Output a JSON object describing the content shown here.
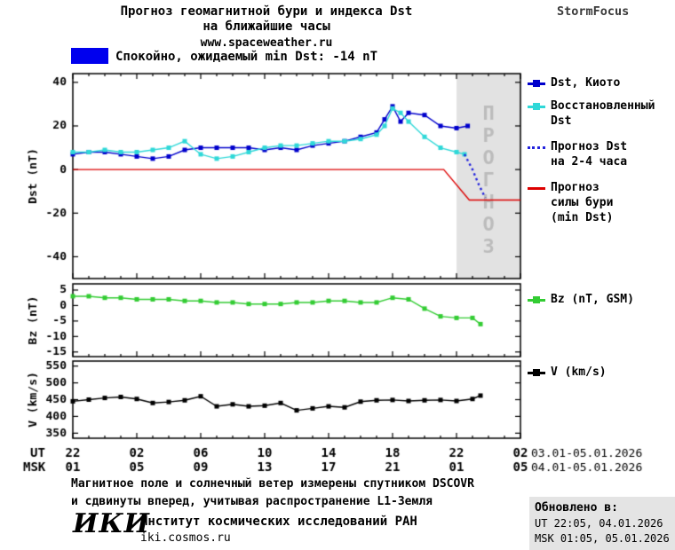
{
  "header": {
    "title_line1": "Прогноз геомагнитной бури и индекса Dst",
    "title_line2": "на ближайшие часы",
    "site": "www.spaceweather.ru",
    "brand": "StormFocus"
  },
  "status_banner": {
    "box_color": "#0000ee",
    "text": "Спокойно, ожидаемый min Dst: -14 nT"
  },
  "legend": {
    "dst_kyoto": "Dst, Киото",
    "dst_restored": "Восстановленный\nDst",
    "dst_forecast": "Прогноз Dst\nна 2-4 часа",
    "storm_forecast": "Прогноз\nсилы бури\n(min Dst)",
    "bz": "Bz (nT, GSM)",
    "v": "V (km/s)"
  },
  "footer": {
    "note_line1": "Магнитное поле и солнечный ветер измерены спутником DSCOVR",
    "note_line2": "и сдвинуты вперед, учитывая распространение L1-Земля",
    "logo": "ИКИ",
    "institute": "Институт космических исследований РАН",
    "site": "iki.cosmos.ru",
    "updated_title": "Обновлено в:",
    "updated_ut": "UT  22:05, 04.01.2026",
    "updated_msk": "MSK 01:05, 05.01.2026"
  },
  "chart_data": {
    "type": "line",
    "x_axis": {
      "min": 0,
      "max": 28,
      "tick_hours": [
        0,
        4,
        8,
        12,
        16,
        20,
        24,
        28
      ],
      "ut_label": "UT",
      "msk_label": "MSK",
      "ut_ticks": [
        "22",
        "02",
        "06",
        "10",
        "14",
        "18",
        "22",
        "02"
      ],
      "msk_ticks": [
        "01",
        "05",
        "09",
        "13",
        "17",
        "21",
        "01",
        "05"
      ],
      "ut_dates": "03.01-05.01.2026",
      "msk_dates": "04.01-05.01.2026"
    },
    "forecast_region": {
      "start": 24,
      "end": 28,
      "label": "ПРОГНОЗ",
      "fill": "#e2e2e2",
      "label_color": "#bcbcbc"
    },
    "panels": [
      {
        "ylabel": "Dst (nT)",
        "ymin": -50,
        "ymax": 44,
        "yticks": [
          40,
          20,
          0,
          -20,
          -40
        ],
        "series": [
          {
            "name": "Dst, Киото",
            "color": "#0000cc",
            "style": "solid",
            "marker": true,
            "points": [
              [
                0,
                7
              ],
              [
                1,
                8
              ],
              [
                2,
                8
              ],
              [
                3,
                7
              ],
              [
                4,
                6
              ],
              [
                5,
                5
              ],
              [
                6,
                6
              ],
              [
                7,
                9
              ],
              [
                8,
                10
              ],
              [
                9,
                10
              ],
              [
                10,
                10
              ],
              [
                11,
                10
              ],
              [
                12,
                9
              ],
              [
                13,
                10
              ],
              [
                14,
                9
              ],
              [
                15,
                11
              ],
              [
                16,
                12
              ],
              [
                17,
                13
              ],
              [
                18,
                15
              ],
              [
                19,
                17
              ],
              [
                19.5,
                23
              ],
              [
                20,
                29
              ],
              [
                20.5,
                22
              ],
              [
                21,
                26
              ],
              [
                22,
                25
              ],
              [
                23,
                20
              ],
              [
                24,
                19
              ],
              [
                24.7,
                20
              ]
            ]
          },
          {
            "name": "Восстановленный Dst",
            "color": "#2fd8d8",
            "style": "solid",
            "marker": true,
            "points": [
              [
                0,
                8
              ],
              [
                1,
                8
              ],
              [
                2,
                9
              ],
              [
                3,
                8
              ],
              [
                4,
                8
              ],
              [
                5,
                9
              ],
              [
                6,
                10
              ],
              [
                7,
                13
              ],
              [
                8,
                7
              ],
              [
                9,
                5
              ],
              [
                10,
                6
              ],
              [
                11,
                8
              ],
              [
                12,
                10
              ],
              [
                13,
                11
              ],
              [
                14,
                11
              ],
              [
                15,
                12
              ],
              [
                16,
                13
              ],
              [
                17,
                13
              ],
              [
                18,
                14
              ],
              [
                19,
                16
              ],
              [
                19.5,
                20
              ],
              [
                20,
                28
              ],
              [
                20.5,
                26
              ],
              [
                21,
                22
              ],
              [
                22,
                15
              ],
              [
                23,
                10
              ],
              [
                24,
                8
              ],
              [
                24.5,
                7
              ]
            ]
          },
          {
            "name": "Прогноз Dst на 2-4 часа",
            "color": "#2222dd",
            "style": "dotted",
            "marker": false,
            "points": [
              [
                24.5,
                7
              ],
              [
                25,
                0
              ],
              [
                25.4,
                -7
              ],
              [
                25.8,
                -13
              ]
            ]
          },
          {
            "name": "Прогноз силы бури (min Dst)",
            "color": "#dd0000",
            "style": "solid",
            "marker": false,
            "points": [
              [
                0,
                0
              ],
              [
                23.2,
                0
              ],
              [
                24.8,
                -14
              ],
              [
                28,
                -14
              ]
            ]
          }
        ]
      },
      {
        "ylabel": "Bz (nT)",
        "ymin": -16.5,
        "ymax": 7,
        "yticks": [
          5,
          0,
          -5,
          -10,
          -15
        ],
        "series": [
          {
            "name": "Bz (nT, GSM)",
            "color": "#33cc33",
            "style": "solid",
            "marker": true,
            "points": [
              [
                0,
                3
              ],
              [
                1,
                3
              ],
              [
                2,
                2.5
              ],
              [
                3,
                2.5
              ],
              [
                4,
                2
              ],
              [
                5,
                2
              ],
              [
                6,
                2
              ],
              [
                7,
                1.5
              ],
              [
                8,
                1.5
              ],
              [
                9,
                1
              ],
              [
                10,
                1
              ],
              [
                11,
                0.5
              ],
              [
                12,
                0.5
              ],
              [
                13,
                0.5
              ],
              [
                14,
                1
              ],
              [
                15,
                1
              ],
              [
                16,
                1.5
              ],
              [
                17,
                1.5
              ],
              [
                18,
                1
              ],
              [
                19,
                1
              ],
              [
                20,
                2.5
              ],
              [
                21,
                2
              ],
              [
                22,
                -1
              ],
              [
                23,
                -3.5
              ],
              [
                24,
                -4
              ],
              [
                25,
                -4
              ],
              [
                25.5,
                -6
              ]
            ]
          }
        ]
      },
      {
        "ylabel": "V (km/s)",
        "ymin": 335,
        "ymax": 565,
        "yticks": [
          550,
          500,
          450,
          400,
          350
        ],
        "series": [
          {
            "name": "V (km/s)",
            "color": "#000000",
            "style": "solid",
            "marker": true,
            "points": [
              [
                0,
                445
              ],
              [
                1,
                450
              ],
              [
                2,
                455
              ],
              [
                3,
                458
              ],
              [
                4,
                452
              ],
              [
                5,
                440
              ],
              [
                6,
                443
              ],
              [
                7,
                448
              ],
              [
                8,
                460
              ],
              [
                9,
                430
              ],
              [
                10,
                436
              ],
              [
                11,
                430
              ],
              [
                12,
                432
              ],
              [
                13,
                440
              ],
              [
                14,
                418
              ],
              [
                15,
                424
              ],
              [
                16,
                430
              ],
              [
                17,
                427
              ],
              [
                18,
                444
              ],
              [
                19,
                448
              ],
              [
                20,
                449
              ],
              [
                21,
                446
              ],
              [
                22,
                448
              ],
              [
                23,
                449
              ],
              [
                24,
                446
              ],
              [
                25,
                452
              ],
              [
                25.5,
                462
              ]
            ]
          }
        ]
      }
    ]
  }
}
